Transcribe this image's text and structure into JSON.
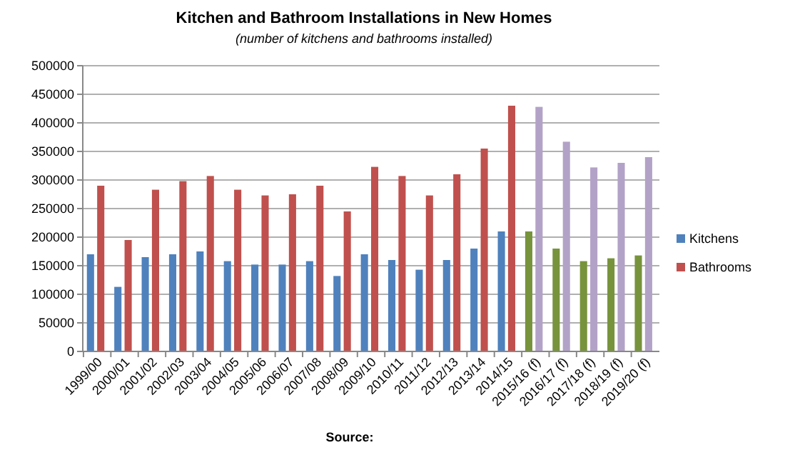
{
  "chart_data": {
    "type": "bar",
    "title": "Kitchen and Bathroom Installations in New Homes",
    "subtitle": "(number of kitchens and bathrooms installed)",
    "annotations": [
      "Source:"
    ],
    "categories": [
      "1999/00",
      "2000/01",
      "2001/02",
      "2002/03",
      "2003/04",
      "2004/05",
      "2005/06",
      "2006/07",
      "2007/08",
      "2008/09",
      "2009/10",
      "2010/11",
      "2011/12",
      "2012/13",
      "2013/14",
      "2014/15",
      "2015/16 (f)",
      "2016/17 (f)",
      "2017/18 (f)",
      "2018/19 (f)",
      "2019/20 (f)"
    ],
    "series": [
      {
        "name": "Kitchens",
        "color": "#4f81bd",
        "colors": [
          "#4f81bd",
          "#4f81bd",
          "#4f81bd",
          "#4f81bd",
          "#4f81bd",
          "#4f81bd",
          "#4f81bd",
          "#4f81bd",
          "#4f81bd",
          "#4f81bd",
          "#4f81bd",
          "#4f81bd",
          "#4f81bd",
          "#4f81bd",
          "#4f81bd",
          "#4f81bd",
          "#77933c",
          "#77933c",
          "#77933c",
          "#77933c",
          "#77933c"
        ],
        "values": [
          170000,
          113000,
          165000,
          170000,
          175000,
          158000,
          152000,
          152000,
          158000,
          132000,
          170000,
          160000,
          143000,
          160000,
          180000,
          210000,
          210000,
          180000,
          158000,
          163000,
          168000
        ]
      },
      {
        "name": "Bathrooms",
        "color": "#c0504d",
        "colors": [
          "#c0504d",
          "#c0504d",
          "#c0504d",
          "#c0504d",
          "#c0504d",
          "#c0504d",
          "#c0504d",
          "#c0504d",
          "#c0504d",
          "#c0504d",
          "#c0504d",
          "#c0504d",
          "#c0504d",
          "#c0504d",
          "#c0504d",
          "#c0504d",
          "#b3a2c7",
          "#b3a2c7",
          "#b3a2c7",
          "#b3a2c7",
          "#b3a2c7"
        ],
        "values": [
          290000,
          195000,
          283000,
          298000,
          307000,
          283000,
          273000,
          275000,
          290000,
          245000,
          323000,
          307000,
          273000,
          310000,
          355000,
          430000,
          428000,
          367000,
          322000,
          330000,
          340000
        ]
      }
    ],
    "ylim": [
      0,
      500000
    ],
    "yticks": [
      0,
      50000,
      100000,
      150000,
      200000,
      250000,
      300000,
      350000,
      400000,
      450000,
      500000
    ],
    "grid": "y",
    "legend": "right"
  }
}
